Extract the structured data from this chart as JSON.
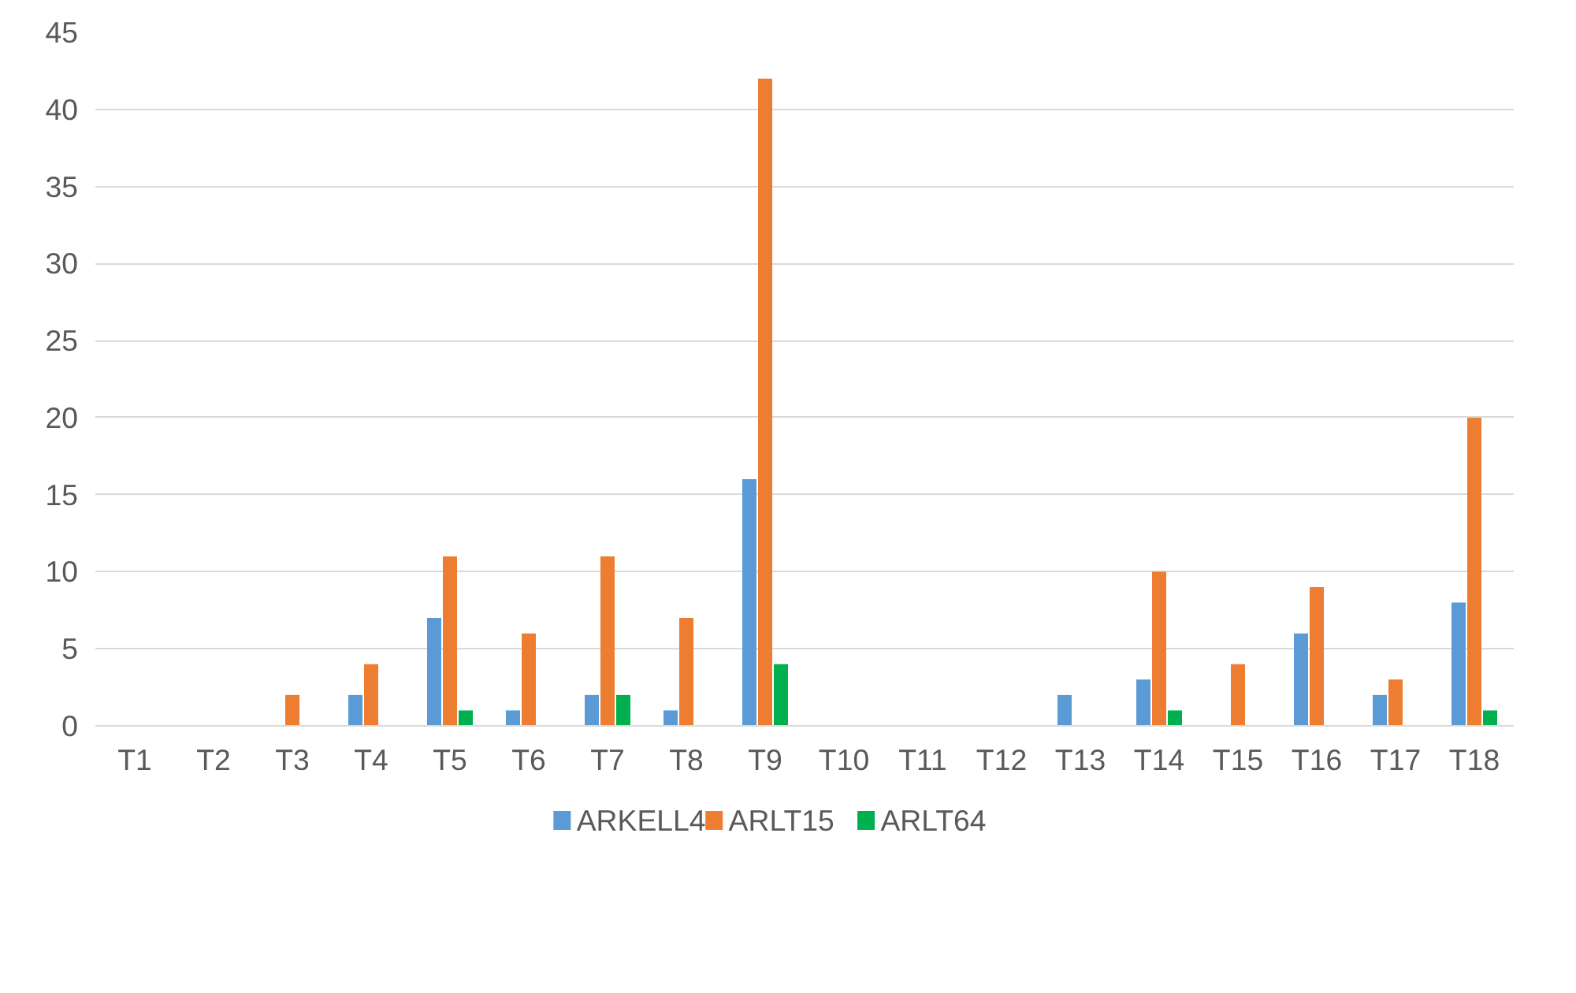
{
  "chart_data": {
    "type": "bar",
    "categories": [
      "T1",
      "T2",
      "T3",
      "T4",
      "T5",
      "T6",
      "T7",
      "T8",
      "T9",
      "T10",
      "T11",
      "T12",
      "T13",
      "T14",
      "T15",
      "T16",
      "T17",
      "T18"
    ],
    "series": [
      {
        "name": "ARKELL4",
        "color": "#5b9bd5",
        "values": [
          0,
          0,
          0,
          2,
          7,
          1,
          2,
          1,
          16,
          0,
          0,
          0,
          2,
          3,
          0,
          6,
          2,
          8
        ]
      },
      {
        "name": "ARLT15",
        "color": "#ed7d31",
        "values": [
          0,
          0,
          2,
          4,
          11,
          6,
          11,
          7,
          42,
          0,
          0,
          0,
          0,
          10,
          4,
          9,
          3,
          20
        ]
      },
      {
        "name": "ARLT64",
        "color": "#00b050",
        "values": [
          0,
          0,
          0,
          0,
          1,
          0,
          2,
          0,
          4,
          0,
          0,
          0,
          0,
          1,
          0,
          0,
          0,
          1
        ]
      }
    ],
    "ylim": [
      0,
      45
    ],
    "yticks": [
      0,
      5,
      10,
      15,
      20,
      25,
      30,
      35,
      40,
      45
    ],
    "grid": "y",
    "legend": "bottom"
  }
}
